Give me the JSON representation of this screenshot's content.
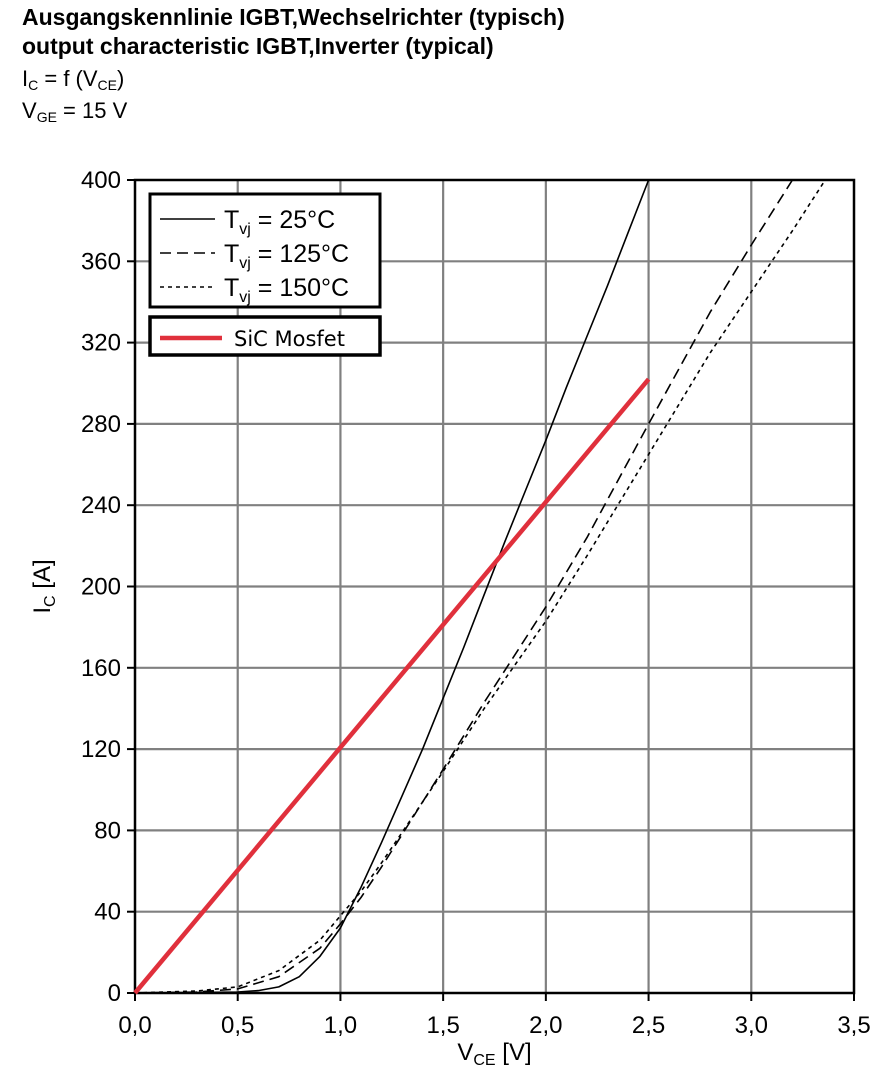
{
  "header": {
    "title_de": "Ausgangskennlinie IGBT,Wechselrichter (typisch)",
    "title_en": "output characteristic IGBT,Inverter (typical)",
    "formula": {
      "lhs": "I",
      "lhs_sub": "C",
      "mid": " = f (V",
      "arg_sub": "CE",
      "end": ")"
    },
    "condition": {
      "sym": "V",
      "sym_sub": "GE",
      "rest": " = 15 V"
    }
  },
  "colors": {
    "sic": "#e0303c",
    "grid": "#808080",
    "axis": "#000000",
    "igbt": "#000000"
  },
  "chart_data": {
    "type": "line",
    "title": "output characteristic IGBT,Inverter (typical)",
    "xlabel": "V_CE [V]",
    "ylabel": "I_C [A]",
    "xlabel_main": "V",
    "xlabel_sub": "CE",
    "xlabel_unit": " [V]",
    "ylabel_main": "I",
    "ylabel_sub": "C",
    "ylabel_unit": " [A]",
    "xlim": [
      0,
      3.5
    ],
    "ylim": [
      0,
      400
    ],
    "grid": true,
    "legend_position": "top-left",
    "x_ticks": [
      0,
      0.5,
      1.0,
      1.5,
      2.0,
      2.5,
      3.0,
      3.5
    ],
    "x_tick_labels": [
      "0,0",
      "0,5",
      "1,0",
      "1,5",
      "2,0",
      "2,5",
      "3,0",
      "3,5"
    ],
    "y_ticks": [
      0,
      40,
      80,
      120,
      160,
      200,
      240,
      280,
      320,
      360,
      400
    ],
    "y_tick_labels": [
      "0",
      "40",
      "80",
      "120",
      "160",
      "200",
      "240",
      "280",
      "320",
      "360",
      "400"
    ],
    "series": [
      {
        "name": "Tvj = 25°C",
        "legend_main": "T",
        "legend_sub": "vj",
        "legend_rest": " = 25°C",
        "style": "solid",
        "x": [
          0,
          0.5,
          0.6,
          0.7,
          0.8,
          0.9,
          1.0,
          1.1,
          1.2,
          1.3,
          1.4,
          1.5,
          1.6,
          1.7,
          1.8,
          1.9,
          2.0,
          2.1,
          2.2,
          2.3,
          2.4,
          2.5
        ],
        "y": [
          0,
          0.5,
          1.2,
          3,
          8,
          18,
          32,
          52,
          74,
          97,
          120,
          145,
          170,
          196,
          222,
          247,
          272,
          298,
          323,
          348,
          374,
          400
        ]
      },
      {
        "name": "Tvj = 125°C",
        "legend_main": "T",
        "legend_sub": "vj",
        "legend_rest": " = 125°C",
        "style": "dashed",
        "x": [
          0,
          0.3,
          0.5,
          0.7,
          0.9,
          1.0,
          1.1,
          1.2,
          1.3,
          1.5,
          1.7,
          2.0,
          2.2,
          2.5,
          2.8,
          3.0,
          3.2
        ],
        "y": [
          0,
          0.5,
          2,
          8,
          22,
          34,
          47,
          62,
          78,
          110,
          143,
          190,
          224,
          280,
          335,
          368,
          400
        ]
      },
      {
        "name": "Tvj = 150°C",
        "legend_main": "T",
        "legend_sub": "vj",
        "legend_rest": " = 150°C",
        "style": "dotted",
        "x": [
          0,
          0.3,
          0.5,
          0.7,
          0.9,
          1.0,
          1.1,
          1.2,
          1.3,
          1.5,
          1.7,
          2.0,
          2.2,
          2.5,
          2.8,
          3.0,
          3.2,
          3.36
        ],
        "y": [
          0,
          1,
          3,
          11,
          26,
          38,
          50,
          64,
          79,
          109,
          140,
          183,
          215,
          265,
          315,
          345,
          375,
          400
        ]
      },
      {
        "name": "SiC Mosfet",
        "legend_main": "SiC Mosfet",
        "legend_sub": "",
        "legend_rest": "",
        "style": "solid-red",
        "x": [
          0,
          2.5
        ],
        "y": [
          0,
          302
        ]
      }
    ]
  }
}
